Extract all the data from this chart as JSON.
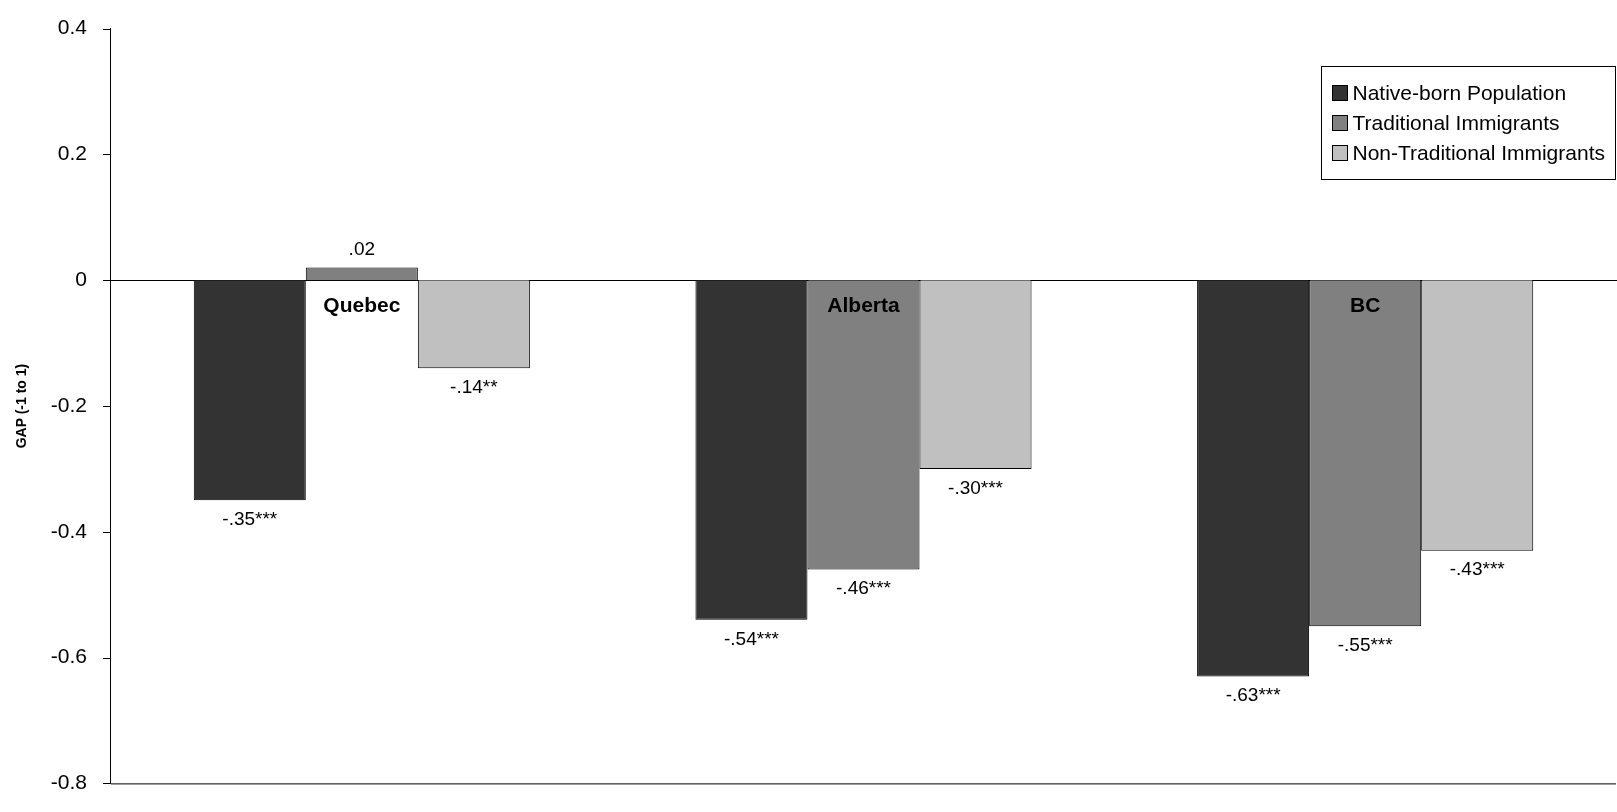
{
  "chart_data": {
    "type": "bar",
    "ylabel": "GAP (-1 to 1)",
    "categories": [
      "Quebec",
      "Alberta",
      "BC"
    ],
    "series": [
      {
        "name": "Native-born Population",
        "color": "#333333",
        "values": [
          -0.35,
          -0.54,
          -0.63
        ],
        "value_labels": [
          "-.35***",
          "-.54***",
          "-.63***"
        ]
      },
      {
        "name": "Traditional Immigrants",
        "color": "#808080",
        "values": [
          0.02,
          -0.46,
          -0.55
        ],
        "value_labels": [
          ".02",
          "-.46***",
          "-.55***"
        ]
      },
      {
        "name": "Non-Traditional Immigrants",
        "color": "#c0c0c0",
        "values": [
          -0.14,
          -0.3,
          -0.43
        ],
        "value_labels": [
          "-.14**",
          "-.30***",
          "-.43***"
        ]
      }
    ],
    "ylim": [
      -0.8,
      0.4
    ],
    "yticks": [
      -0.8,
      -0.6,
      -0.4,
      -0.2,
      0,
      0.2,
      0.4
    ],
    "grid": false,
    "legend": "top right"
  }
}
